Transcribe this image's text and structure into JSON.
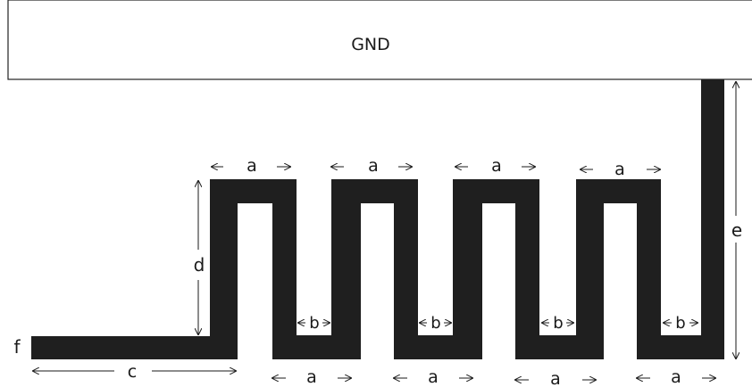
{
  "gnd_label": "GND",
  "labels": {
    "a": "a",
    "b": "b",
    "c": "c",
    "d": "d",
    "e": "e",
    "f": "f"
  },
  "colors": {
    "trace": "#1f1f1f",
    "outline": "#222222",
    "background": "#ffffff"
  }
}
